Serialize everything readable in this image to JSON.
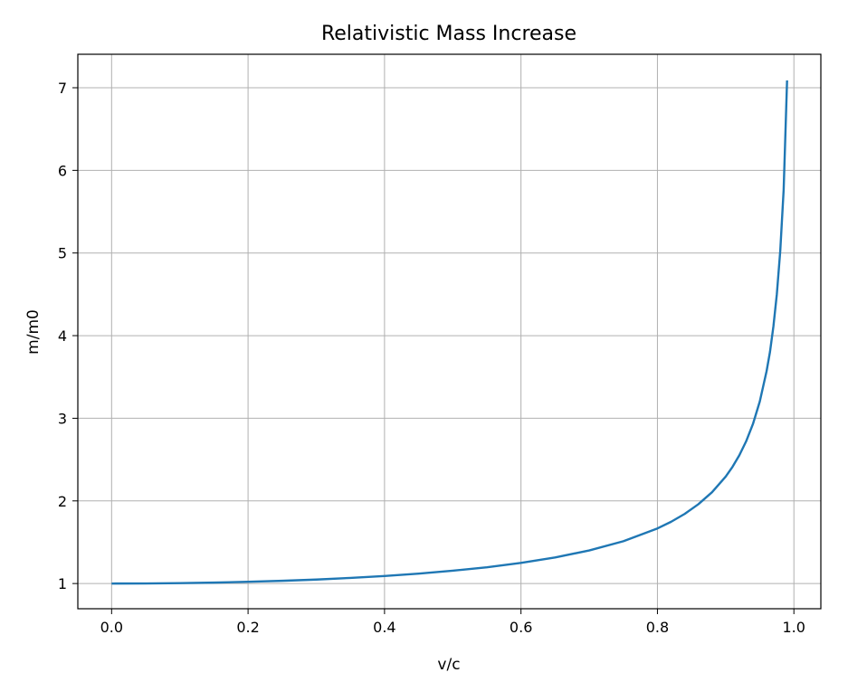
{
  "chart_data": {
    "type": "line",
    "title": "Relativistic Mass Increase",
    "xlabel": "v/c",
    "ylabel": "m/m0",
    "xlim": [
      -0.0495,
      1.0395
    ],
    "ylim": [
      0.695,
      7.405
    ],
    "x_ticks": [
      0.0,
      0.2,
      0.4,
      0.6,
      0.8,
      1.0
    ],
    "x_tick_labels": [
      "0.0",
      "0.2",
      "0.4",
      "0.6",
      "0.8",
      "1.0"
    ],
    "y_ticks": [
      1,
      2,
      3,
      4,
      5,
      6,
      7
    ],
    "y_tick_labels": [
      "1",
      "2",
      "3",
      "4",
      "5",
      "6",
      "7"
    ],
    "grid": true,
    "series": [
      {
        "color": "#1f77b4",
        "x": [
          0.0,
          0.05,
          0.1,
          0.15,
          0.2,
          0.25,
          0.3,
          0.35,
          0.4,
          0.45,
          0.5,
          0.55,
          0.6,
          0.65,
          0.7,
          0.75,
          0.8,
          0.82,
          0.84,
          0.86,
          0.88,
          0.9,
          0.91,
          0.92,
          0.93,
          0.94,
          0.95,
          0.96,
          0.965,
          0.97,
          0.975,
          0.98,
          0.985,
          0.99
        ],
        "y": [
          1.0,
          1.001,
          1.005,
          1.011,
          1.021,
          1.033,
          1.048,
          1.068,
          1.091,
          1.12,
          1.155,
          1.197,
          1.25,
          1.316,
          1.4,
          1.512,
          1.667,
          1.747,
          1.843,
          1.96,
          2.105,
          2.294,
          2.412,
          2.552,
          2.721,
          2.931,
          3.203,
          3.571,
          3.805,
          4.113,
          4.502,
          5.025,
          5.767,
          7.089
        ]
      }
    ]
  }
}
